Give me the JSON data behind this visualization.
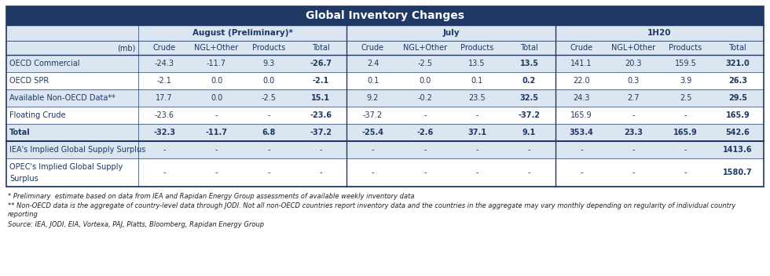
{
  "title": "Global Inventory Changes",
  "title_bg": "#1f3864",
  "title_color": "#ffffff",
  "header_bg": "#dce6f1",
  "col_groups": [
    {
      "label": "August (Preliminary)*"
    },
    {
      "label": "July"
    },
    {
      "label": "1H20"
    }
  ],
  "unit_label": "(mb)",
  "rows": [
    {
      "label": "OECD Commercial",
      "values": [
        "-24.3",
        "-11.7",
        "9.3",
        "-26.7",
        "2.4",
        "-2.5",
        "13.5",
        "13.5",
        "141.1",
        "20.3",
        "159.5",
        "321.0"
      ],
      "bold_cols": [
        3,
        7,
        11
      ],
      "bg": "#dce6f1"
    },
    {
      "label": "OECD SPR",
      "values": [
        "-2.1",
        "0.0",
        "0.0",
        "-2.1",
        "0.1",
        "0.0",
        "0.1",
        "0.2",
        "22.0",
        "0.3",
        "3.9",
        "26.3"
      ],
      "bold_cols": [
        3,
        7,
        11
      ],
      "bg": "#ffffff"
    },
    {
      "label": "Available Non-OECD Data**",
      "values": [
        "17.7",
        "0.0",
        "-2.5",
        "15.1",
        "9.2",
        "-0.2",
        "23.5",
        "32.5",
        "24.3",
        "2.7",
        "2.5",
        "29.5"
      ],
      "bold_cols": [
        3,
        7,
        11
      ],
      "bg": "#dce6f1"
    },
    {
      "label": "Floating Crude",
      "values": [
        "-23.6",
        "-",
        "-",
        "-23.6",
        "-37.2",
        "-",
        "-",
        "-37.2",
        "165.9",
        "-",
        "-",
        "165.9"
      ],
      "bold_cols": [
        3,
        7,
        11
      ],
      "bg": "#ffffff"
    },
    {
      "label": "Total",
      "values": [
        "-32.3",
        "-11.7",
        "6.8",
        "-37.2",
        "-25.4",
        "-2.6",
        "37.1",
        "9.1",
        "353.4",
        "23.3",
        "165.9",
        "542.6"
      ],
      "bold_cols": [
        0,
        1,
        2,
        3,
        4,
        5,
        6,
        7,
        8,
        9,
        10,
        11
      ],
      "bg": "#dce6f1"
    },
    {
      "label": "IEA's Implied Global Supply Surplus",
      "values": [
        "-",
        "-",
        "-",
        "-",
        "-",
        "-",
        "-",
        "-",
        "-",
        "-",
        "-",
        "1413.6"
      ],
      "bold_cols": [
        11
      ],
      "bg": "#dce6f1",
      "multiline": false
    },
    {
      "label": "OPEC's Implied Global Supply\nSurplus",
      "values": [
        "-",
        "-",
        "-",
        "-",
        "-",
        "-",
        "-",
        "-",
        "-",
        "-",
        "-",
        "1580.7"
      ],
      "bold_cols": [
        11
      ],
      "bg": "#ffffff",
      "multiline": true
    }
  ],
  "footnotes": [
    {
      "text": "* Preliminary  estimate based on data from IEA and Rapidan Energy Group assessments of available weekly inventory data",
      "indent": 0
    },
    {
      "text": "** Non-OECD data is the aggregate of country-level data through JODI. Not all non-OECD countries report inventory data and the countries in the aggregate may vary monthly depending on regularity of individual country reporting",
      "indent": 0
    },
    {
      "text": "Source: IEA, JODI, EIA, Vortexa, PAJ, Platts, Bloomberg, Rapidan Energy Group",
      "indent": 0
    }
  ],
  "border_color": "#1f3864",
  "text_color": "#1f3864",
  "font_size": 7.0,
  "header_font_size": 7.5,
  "title_font_size": 10.0
}
